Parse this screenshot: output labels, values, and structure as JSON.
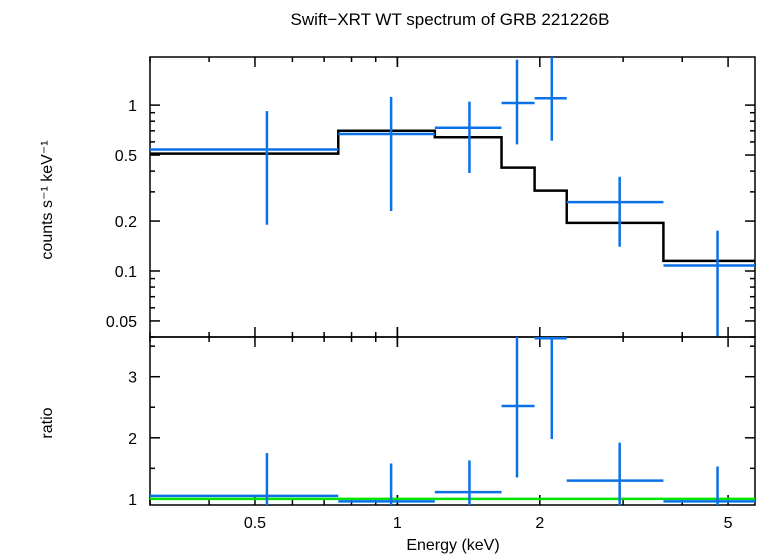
{
  "chart_data": [
    {
      "type": "line",
      "panel": "spectrum",
      "title": "Swift−XRT WT spectrum of GRB 221226B",
      "ylabel": "counts s⁻¹ keV⁻¹",
      "xscale": "log",
      "yscale": "log",
      "xlim": [
        0.3,
        5.7
      ],
      "ylim": [
        0.04,
        1.95
      ],
      "ytick_values": [
        0.05,
        0.1,
        0.2,
        0.5,
        1
      ],
      "ytick_labels": [
        "0.05",
        "0.1",
        "0.2",
        "0.5",
        "1"
      ],
      "colors": {
        "data": "#0a72e6",
        "model": "#000000"
      },
      "data_points": [
        {
          "x": 0.53,
          "xlo": 0.3,
          "xhi": 0.75,
          "y": 0.54,
          "ylo": 0.19,
          "yhi": 0.92
        },
        {
          "x": 0.97,
          "xlo": 0.75,
          "xhi": 1.2,
          "y": 0.67,
          "ylo": 0.23,
          "yhi": 1.12
        },
        {
          "x": 1.42,
          "xlo": 1.2,
          "xhi": 1.66,
          "y": 0.73,
          "ylo": 0.39,
          "yhi": 1.05
        },
        {
          "x": 1.79,
          "xlo": 1.66,
          "xhi": 1.95,
          "y": 1.03,
          "ylo": 0.58,
          "yhi": 1.88
        },
        {
          "x": 2.12,
          "xlo": 1.95,
          "xhi": 2.28,
          "y": 1.1,
          "ylo": 0.61,
          "yhi": 1.95
        },
        {
          "x": 2.95,
          "xlo": 2.28,
          "xhi": 3.65,
          "y": 0.26,
          "ylo": 0.14,
          "yhi": 0.37
        },
        {
          "x": 4.75,
          "xlo": 3.65,
          "xhi": 5.7,
          "y": 0.108,
          "ylo": 0.04,
          "yhi": 0.175
        }
      ],
      "model_steps": [
        {
          "xlo": 0.3,
          "xhi": 0.75,
          "y": 0.51
        },
        {
          "xlo": 0.75,
          "xhi": 1.2,
          "y": 0.7
        },
        {
          "xlo": 1.2,
          "xhi": 1.66,
          "y": 0.64
        },
        {
          "xlo": 1.66,
          "xhi": 1.95,
          "y": 0.42
        },
        {
          "xlo": 1.95,
          "xhi": 2.28,
          "y": 0.305
        },
        {
          "xlo": 2.28,
          "xhi": 3.65,
          "y": 0.195
        },
        {
          "xlo": 3.65,
          "xhi": 5.7,
          "y": 0.115
        }
      ]
    },
    {
      "type": "line",
      "panel": "ratio",
      "xlabel": "Energy (keV)",
      "ylabel": "ratio",
      "xscale": "log",
      "yscale": "linear",
      "xlim": [
        0.3,
        5.7
      ],
      "ylim": [
        0.9,
        3.65
      ],
      "xtick_values": [
        0.5,
        1,
        2,
        5
      ],
      "xtick_labels": [
        "0.5",
        "1",
        "2",
        "5"
      ],
      "ytick_values": [
        1,
        2,
        3
      ],
      "ytick_labels": [
        "1",
        "2",
        "3"
      ],
      "reference_line": 1,
      "colors": {
        "data": "#0a72e6",
        "reference": "#00e600"
      },
      "data_points": [
        {
          "x": 0.53,
          "xlo": 0.3,
          "xhi": 0.75,
          "y": 1.05,
          "ylo": 0.9,
          "yhi": 1.75
        },
        {
          "x": 0.97,
          "xlo": 0.75,
          "xhi": 1.2,
          "y": 0.96,
          "ylo": 0.9,
          "yhi": 1.58
        },
        {
          "x": 1.42,
          "xlo": 1.2,
          "xhi": 1.66,
          "y": 1.11,
          "ylo": 0.9,
          "yhi": 1.63
        },
        {
          "x": 1.79,
          "xlo": 1.66,
          "xhi": 1.95,
          "y": 2.52,
          "ylo": 1.35,
          "yhi": 3.65
        },
        {
          "x": 2.12,
          "xlo": 1.95,
          "xhi": 2.28,
          "y": 3.63,
          "ylo": 1.98,
          "yhi": 3.65
        },
        {
          "x": 2.95,
          "xlo": 2.28,
          "xhi": 3.65,
          "y": 1.3,
          "ylo": 0.9,
          "yhi": 1.92
        },
        {
          "x": 4.75,
          "xlo": 3.65,
          "xhi": 5.7,
          "y": 0.96,
          "ylo": 0.9,
          "yhi": 1.53
        }
      ]
    }
  ]
}
